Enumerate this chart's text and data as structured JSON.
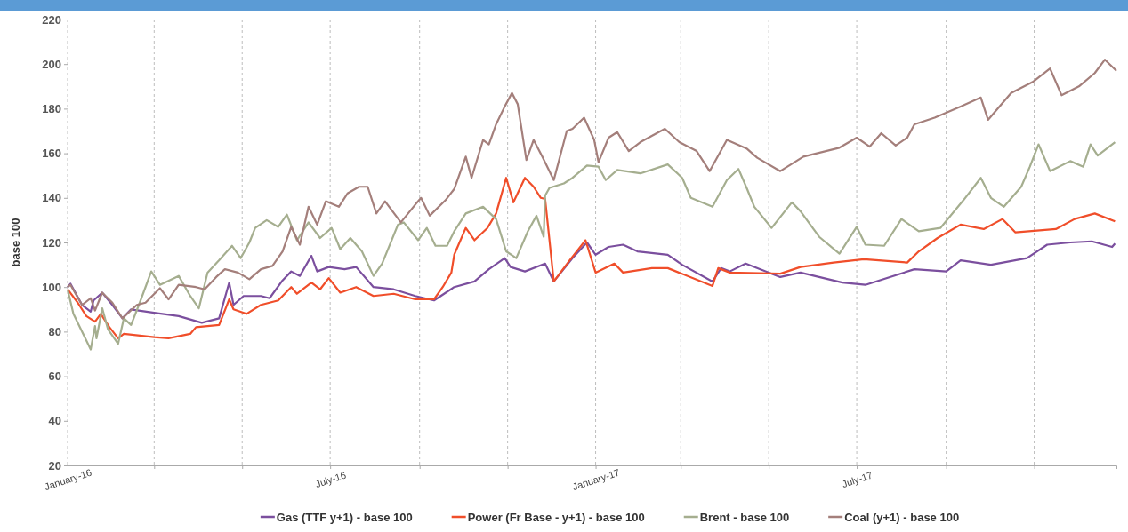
{
  "chart_data": {
    "type": "line",
    "ylabel": "base 100",
    "xlim": [
      "2016-01-01",
      "2017-12-28"
    ],
    "ylim": [
      20,
      220
    ],
    "yticks": [
      20,
      40,
      60,
      80,
      100,
      120,
      140,
      160,
      180,
      200,
      220
    ],
    "xticks": [
      {
        "value": "2016-01-01",
        "label": "January-16"
      },
      {
        "value": "2016-03-01",
        "label": null
      },
      {
        "value": "2016-05-01",
        "label": null
      },
      {
        "value": "2016-07-01",
        "label": "July-16"
      },
      {
        "value": "2016-09-01",
        "label": null
      },
      {
        "value": "2016-11-01",
        "label": null
      },
      {
        "value": "2017-01-01",
        "label": "January-17"
      },
      {
        "value": "2017-03-01",
        "label": null
      },
      {
        "value": "2017-05-01",
        "label": null
      },
      {
        "value": "2017-07-01",
        "label": "July-17"
      },
      {
        "value": "2017-09-01",
        "label": null
      },
      {
        "value": "2017-11-01",
        "label": null
      }
    ],
    "grid": "x",
    "legend": "bottom",
    "marker": "none",
    "line_style": "solid",
    "series": [
      {
        "name": "Gas (TTF y+1) - base 100",
        "color": "#7b4f9e",
        "x": [
          "2016-01-01",
          "2016-01-03",
          "2016-01-11",
          "2016-01-17",
          "2016-01-19",
          "2016-01-25",
          "2016-02-01",
          "2016-02-08",
          "2016-02-14",
          "2016-03-01",
          "2016-03-18",
          "2016-04-03",
          "2016-04-15",
          "2016-04-22",
          "2016-04-25",
          "2016-05-02",
          "2016-05-14",
          "2016-05-20",
          "2016-05-29",
          "2016-06-04",
          "2016-06-10",
          "2016-06-18",
          "2016-06-22",
          "2016-06-30",
          "2016-07-11",
          "2016-07-19",
          "2016-07-31",
          "2016-08-14",
          "2016-08-29",
          "2016-09-11",
          "2016-09-25",
          "2016-10-09",
          "2016-10-19",
          "2016-10-30",
          "2016-11-03",
          "2016-11-13",
          "2016-11-27",
          "2016-12-03",
          "2016-12-16",
          "2016-12-26",
          "2017-01-01",
          "2017-01-10",
          "2017-01-20",
          "2017-01-30",
          "2017-02-20",
          "2017-03-02",
          "2017-03-23",
          "2017-03-29",
          "2017-04-04",
          "2017-04-15",
          "2017-05-09",
          "2017-05-23",
          "2017-06-21",
          "2017-07-07",
          "2017-08-10",
          "2017-09-01",
          "2017-09-11",
          "2017-10-02",
          "2017-10-27",
          "2017-11-10",
          "2017-11-26",
          "2017-12-11",
          "2017-12-25",
          "2017-12-27"
        ],
        "values": [
          100,
          101.5,
          92,
          89,
          94,
          97.5,
          92,
          86,
          90,
          88.5,
          87,
          84,
          86,
          102,
          92,
          96,
          96,
          95,
          103,
          107,
          105,
          114,
          107,
          109,
          108,
          109,
          100,
          99,
          96,
          94,
          100,
          102.5,
          108,
          113,
          109,
          107,
          110.5,
          102.5,
          113,
          120,
          114.5,
          118,
          119,
          116,
          114.5,
          110,
          102.5,
          108.5,
          107,
          110.5,
          104.5,
          106.5,
          102,
          101,
          108,
          107,
          112,
          110,
          113,
          119,
          120,
          120.5,
          118,
          119.5
        ]
      },
      {
        "name": "Power (Fr Base - y+1) - base 100",
        "color": "#f04e2a",
        "x": [
          "2016-01-01",
          "2016-01-08",
          "2016-01-14",
          "2016-01-20",
          "2016-01-24",
          "2016-01-30",
          "2016-02-05",
          "2016-02-09",
          "2016-03-01",
          "2016-03-11",
          "2016-03-26",
          "2016-03-30",
          "2016-04-15",
          "2016-04-22",
          "2016-04-25",
          "2016-05-04",
          "2016-05-14",
          "2016-05-26",
          "2016-06-04",
          "2016-06-08",
          "2016-06-18",
          "2016-06-24",
          "2016-06-30",
          "2016-07-08",
          "2016-07-19",
          "2016-07-31",
          "2016-08-14",
          "2016-08-29",
          "2016-09-11",
          "2016-09-17",
          "2016-09-23",
          "2016-09-25",
          "2016-10-03",
          "2016-10-09",
          "2016-10-18",
          "2016-10-24",
          "2016-10-31",
          "2016-11-05",
          "2016-11-13",
          "2016-11-19",
          "2016-11-24",
          "2016-11-27",
          "2016-12-03",
          "2016-12-14",
          "2016-12-25",
          "2017-01-01",
          "2017-01-14",
          "2017-01-20",
          "2017-02-09",
          "2017-02-20",
          "2017-03-23",
          "2017-03-27",
          "2017-04-04",
          "2017-05-09",
          "2017-05-23",
          "2017-06-15",
          "2017-07-06",
          "2017-08-05",
          "2017-08-13",
          "2017-08-26",
          "2017-09-11",
          "2017-09-27",
          "2017-10-10",
          "2017-10-19",
          "2017-11-16",
          "2017-11-29",
          "2017-12-13",
          "2017-12-27"
        ],
        "values": [
          99,
          93,
          87,
          84.5,
          88,
          82,
          77,
          79,
          77.5,
          77,
          79,
          82,
          83,
          94.5,
          90,
          88,
          92,
          94,
          100,
          97,
          102,
          99,
          104,
          97.5,
          100,
          96,
          97,
          94.5,
          94.5,
          100,
          106.5,
          114.5,
          126.5,
          121,
          126.5,
          133,
          149,
          138,
          149,
          145,
          140,
          139.5,
          102.5,
          112,
          121,
          106.5,
          110.5,
          106.5,
          108.5,
          108.5,
          100.5,
          108.5,
          106.5,
          106,
          109,
          111,
          112.5,
          111,
          116,
          122,
          128,
          126,
          130.5,
          124.5,
          126,
          130.5,
          133,
          129.5
        ]
      },
      {
        "name": "Brent - base 100",
        "color": "#a5ae8f",
        "x": [
          "2016-01-01",
          "2016-01-05",
          "2016-01-17",
          "2016-01-20",
          "2016-01-21",
          "2016-01-25",
          "2016-01-29",
          "2016-02-05",
          "2016-02-09",
          "2016-02-14",
          "2016-02-20",
          "2016-02-28",
          "2016-03-05",
          "2016-03-18",
          "2016-03-26",
          "2016-04-01",
          "2016-04-07",
          "2016-04-15",
          "2016-04-24",
          "2016-04-30",
          "2016-05-06",
          "2016-05-10",
          "2016-05-18",
          "2016-05-26",
          "2016-06-01",
          "2016-06-08",
          "2016-06-16",
          "2016-06-24",
          "2016-07-02",
          "2016-07-08",
          "2016-07-15",
          "2016-07-23",
          "2016-07-31",
          "2016-08-06",
          "2016-08-17",
          "2016-08-21",
          "2016-08-31",
          "2016-09-06",
          "2016-09-12",
          "2016-09-20",
          "2016-09-25",
          "2016-10-03",
          "2016-10-15",
          "2016-10-24",
          "2016-10-31",
          "2016-11-07",
          "2016-11-15",
          "2016-11-21",
          "2016-11-26",
          "2016-11-27",
          "2016-11-30",
          "2016-12-10",
          "2016-12-16",
          "2016-12-26",
          "2017-01-03",
          "2017-01-08",
          "2017-01-16",
          "2017-02-01",
          "2017-02-20",
          "2017-03-02",
          "2017-03-08",
          "2017-03-23",
          "2017-04-02",
          "2017-04-10",
          "2017-04-16",
          "2017-04-21",
          "2017-05-03",
          "2017-05-17",
          "2017-05-23",
          "2017-06-05",
          "2017-06-19",
          "2017-07-01",
          "2017-07-07",
          "2017-07-20",
          "2017-08-01",
          "2017-08-13",
          "2017-08-28",
          "2017-09-13",
          "2017-09-25",
          "2017-10-02",
          "2017-10-11",
          "2017-10-23",
          "2017-10-29",
          "2017-11-04",
          "2017-11-12",
          "2017-11-26",
          "2017-12-05",
          "2017-12-10",
          "2017-12-15",
          "2017-12-27"
        ],
        "values": [
          99,
          88,
          72,
          82.5,
          77,
          90.5,
          81,
          74.5,
          86,
          83,
          93,
          107,
          101,
          105,
          96,
          90.5,
          106.5,
          112,
          118.5,
          113,
          120,
          126.5,
          130,
          127,
          132.5,
          121,
          129,
          122,
          126.5,
          117,
          122,
          116,
          105,
          110.5,
          128,
          129,
          121,
          126.5,
          118.5,
          118.5,
          125,
          133,
          136,
          130.5,
          116,
          113,
          125,
          132,
          122.5,
          141,
          144.5,
          146.5,
          149,
          154.5,
          154,
          148,
          152.5,
          151,
          155,
          149,
          140,
          136,
          148,
          153,
          144,
          136,
          126.5,
          138,
          134,
          122.5,
          115,
          127,
          119,
          118.5,
          130.5,
          125,
          126.5,
          139,
          149,
          140,
          136,
          145,
          154,
          164,
          152,
          156.5,
          154,
          164,
          159,
          165
        ]
      },
      {
        "name": "Coal (y+1) - base 100",
        "color": "#a47f7b",
        "x": [
          "2016-01-01",
          "2016-01-03",
          "2016-01-11",
          "2016-01-17",
          "2016-01-20",
          "2016-01-25",
          "2016-02-01",
          "2016-02-08",
          "2016-02-18",
          "2016-02-24",
          "2016-03-05",
          "2016-03-11",
          "2016-03-18",
          "2016-03-30",
          "2016-04-05",
          "2016-04-13",
          "2016-04-19",
          "2016-04-28",
          "2016-05-06",
          "2016-05-14",
          "2016-05-22",
          "2016-05-29",
          "2016-06-04",
          "2016-06-10",
          "2016-06-16",
          "2016-06-22",
          "2016-06-28",
          "2016-07-07",
          "2016-07-13",
          "2016-07-21",
          "2016-07-27",
          "2016-08-02",
          "2016-08-08",
          "2016-08-19",
          "2016-08-29",
          "2016-09-02",
          "2016-09-08",
          "2016-09-19",
          "2016-09-25",
          "2016-10-03",
          "2016-10-07",
          "2016-10-15",
          "2016-10-19",
          "2016-10-24",
          "2016-10-30",
          "2016-11-04",
          "2016-11-08",
          "2016-11-14",
          "2016-11-19",
          "2016-11-25",
          "2016-12-03",
          "2016-12-12",
          "2016-12-16",
          "2016-12-24",
          "2016-12-31",
          "2017-01-03",
          "2017-01-10",
          "2017-01-16",
          "2017-01-24",
          "2017-02-01",
          "2017-02-18",
          "2017-02-28",
          "2017-03-12",
          "2017-03-21",
          "2017-04-02",
          "2017-04-16",
          "2017-04-23",
          "2017-05-09",
          "2017-05-25",
          "2017-06-19",
          "2017-07-01",
          "2017-07-10",
          "2017-07-18",
          "2017-07-28",
          "2017-08-05",
          "2017-08-10",
          "2017-08-24",
          "2017-09-11",
          "2017-09-25",
          "2017-09-30",
          "2017-10-16",
          "2017-10-31",
          "2017-11-12",
          "2017-11-20",
          "2017-12-02",
          "2017-12-13",
          "2017-12-20",
          "2017-12-28"
        ],
        "values": [
          100,
          101,
          92,
          95,
          89.5,
          97.5,
          93,
          86,
          92,
          93,
          99.5,
          94.5,
          101,
          100,
          99,
          104.5,
          108,
          106.5,
          103.5,
          108,
          109.5,
          116,
          127,
          119,
          136,
          128,
          138.5,
          136,
          142,
          145,
          145,
          133,
          138.5,
          129,
          137,
          140,
          132,
          139,
          144,
          158.5,
          149,
          166,
          164,
          173,
          181,
          187,
          182,
          157,
          166,
          158.5,
          148,
          170,
          171,
          176,
          166,
          156,
          167,
          169.5,
          161,
          165,
          171,
          165,
          161,
          152,
          166,
          162,
          158,
          152,
          158.5,
          162.5,
          167,
          163,
          169,
          163.5,
          167,
          173,
          176,
          181,
          185,
          175,
          187,
          192,
          198,
          186,
          190,
          196,
          202,
          197
        ]
      }
    ]
  }
}
